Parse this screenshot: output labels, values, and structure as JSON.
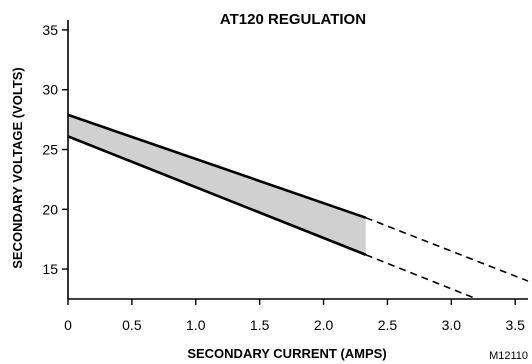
{
  "chart_data": {
    "type": "area",
    "title": "AT120 REGULATION",
    "xlabel": "SECONDARY CURRENT (AMPS)",
    "ylabel": "SECONDARY VOLTAGE (VOLTS)",
    "code": "M12110",
    "xlim": [
      0,
      3.6
    ],
    "ylim": [
      12.5,
      36.5
    ],
    "x_ticks": [
      0,
      0.5,
      1.0,
      1.5,
      2.0,
      2.5,
      3.0,
      3.5
    ],
    "x_tick_labels": [
      "0",
      "0.5",
      "1.0",
      "1.5",
      "2.0",
      "2.5",
      "3.0",
      "3.5"
    ],
    "y_ticks": [
      15,
      20,
      25,
      30,
      35
    ],
    "y_tick_labels": [
      "15",
      "20",
      "25",
      "30",
      "35"
    ],
    "grid": false,
    "series": [
      {
        "style": "solid",
        "x": [
          0,
          2.33
        ],
        "y": [
          27.9,
          19.3
        ]
      },
      {
        "style": "solid",
        "x": [
          0,
          2.33
        ],
        "y": [
          26.1,
          16.2
        ]
      },
      {
        "style": "dashed",
        "x": [
          2.33,
          3.6
        ],
        "y": [
          19.3,
          14.0
        ]
      },
      {
        "style": "dashed",
        "x": [
          2.33,
          3.2
        ],
        "y": [
          16.2,
          12.5
        ]
      }
    ],
    "shaded_band": {
      "x": [
        0,
        2.33
      ],
      "upper": [
        27.9,
        19.3
      ],
      "lower": [
        26.1,
        16.2
      ],
      "color": "#d0d0d0"
    }
  }
}
